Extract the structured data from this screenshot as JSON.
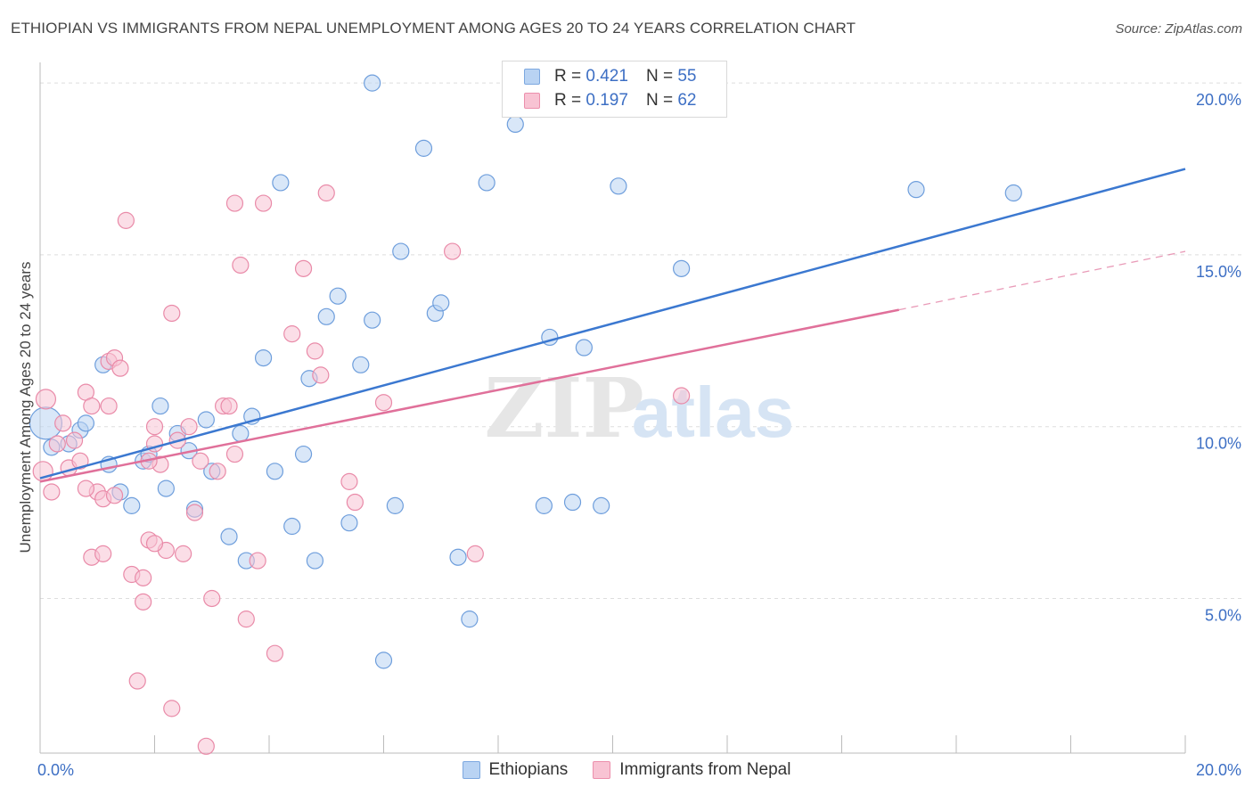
{
  "title": "ETHIOPIAN VS IMMIGRANTS FROM NEPAL UNEMPLOYMENT AMONG AGES 20 TO 24 YEARS CORRELATION CHART",
  "source": "Source: ZipAtlas.com",
  "watermark": {
    "zip": "ZIP",
    "atlas": "atlas"
  },
  "legend_top": [
    {
      "r_label": "R =",
      "r_value": "0.421",
      "n_label": "N =",
      "n_value": "55"
    },
    {
      "r_label": "R =",
      "r_value": "0.197",
      "n_label": "N =",
      "n_value": "62"
    }
  ],
  "colors": {
    "blue_fill": "#b9d3f3",
    "blue_stroke": "#6e9edc",
    "blue_line": "#3b78d0",
    "pink_fill": "#f8c3d3",
    "pink_stroke": "#e98aa8",
    "pink_line": "#e0709a",
    "tick_label": "#3d6fc4",
    "grid": "#dddddd"
  },
  "chart_data": {
    "type": "scatter",
    "title": "ETHIOPIAN VS IMMIGRANTS FROM NEPAL UNEMPLOYMENT AMONG AGES 20 TO 24 YEARS CORRELATION CHART",
    "xlabel": "",
    "ylabel": "Unemployment Among Ages 20 to 24 years",
    "xlim": [
      0,
      20
    ],
    "ylim": [
      0.5,
      20.6
    ],
    "x_tick_labels": [
      {
        "value": 0,
        "label": "0.0%"
      },
      {
        "value": 20,
        "label": "20.0%"
      }
    ],
    "y_ticks": [
      {
        "value": 5,
        "label": "5.0%"
      },
      {
        "value": 10,
        "label": "10.0%"
      },
      {
        "value": 15,
        "label": "15.0%"
      },
      {
        "value": 20,
        "label": "20.0%"
      }
    ],
    "x_minor_ticks": [
      2,
      4,
      6,
      8,
      10,
      12,
      14,
      16,
      18,
      20
    ],
    "grid": true,
    "legend": "bottom-center",
    "series": [
      {
        "name": "Ethiopians",
        "color": "blue",
        "trend": {
          "x0": 0,
          "y0": 8.5,
          "x1": 20,
          "y1": 17.5
        },
        "points": [
          [
            0.1,
            10.1,
            18
          ],
          [
            0.2,
            9.4,
            9
          ],
          [
            0.5,
            9.5,
            9
          ],
          [
            0.7,
            9.9,
            9
          ],
          [
            0.8,
            10.1,
            9
          ],
          [
            1.1,
            11.8,
            9
          ],
          [
            1.2,
            8.9,
            9
          ],
          [
            1.4,
            8.1,
            9
          ],
          [
            1.6,
            7.7,
            9
          ],
          [
            1.8,
            9.0,
            9
          ],
          [
            1.9,
            9.2,
            9
          ],
          [
            2.1,
            10.6,
            9
          ],
          [
            2.2,
            8.2,
            9
          ],
          [
            2.4,
            9.8,
            9
          ],
          [
            2.6,
            9.3,
            9
          ],
          [
            2.7,
            7.6,
            9
          ],
          [
            2.9,
            10.2,
            9
          ],
          [
            3.0,
            8.7,
            9
          ],
          [
            3.3,
            6.8,
            9
          ],
          [
            3.5,
            9.8,
            9
          ],
          [
            3.6,
            6.1,
            9
          ],
          [
            3.7,
            10.3,
            9
          ],
          [
            3.9,
            12.0,
            9
          ],
          [
            4.1,
            8.7,
            9
          ],
          [
            4.2,
            17.1,
            9
          ],
          [
            4.4,
            7.1,
            9
          ],
          [
            4.6,
            9.2,
            9
          ],
          [
            4.7,
            11.4,
            9
          ],
          [
            4.8,
            6.1,
            9
          ],
          [
            5.0,
            13.2,
            9
          ],
          [
            5.2,
            13.8,
            9
          ],
          [
            5.4,
            7.2,
            9
          ],
          [
            5.6,
            11.8,
            9
          ],
          [
            5.8,
            13.1,
            9
          ],
          [
            6.0,
            3.2,
            9
          ],
          [
            6.2,
            7.7,
            9
          ],
          [
            6.3,
            15.1,
            9
          ],
          [
            6.7,
            18.1,
            9
          ],
          [
            6.9,
            13.3,
            9
          ],
          [
            7.0,
            13.6,
            9
          ],
          [
            7.3,
            6.2,
            9
          ],
          [
            7.5,
            4.4,
            9
          ],
          [
            7.8,
            17.1,
            9
          ],
          [
            8.3,
            18.8,
            9
          ],
          [
            8.8,
            7.7,
            9
          ],
          [
            8.9,
            12.6,
            9
          ],
          [
            9.3,
            7.8,
            9
          ],
          [
            9.5,
            12.3,
            9
          ],
          [
            9.8,
            7.7,
            9
          ],
          [
            10.1,
            17.0,
            9
          ],
          [
            11.2,
            14.6,
            9
          ],
          [
            15.3,
            16.9,
            9
          ],
          [
            17.0,
            16.8,
            9
          ],
          [
            5.8,
            20.0,
            9
          ],
          [
            3.1,
            9.6,
            0
          ]
        ]
      },
      {
        "name": "Immigrants from Nepal",
        "color": "pink",
        "trend": {
          "x0": 0,
          "y0": 8.4,
          "x1": 15,
          "y1": 13.4
        },
        "trend_dashed": {
          "x0": 15,
          "y0": 13.4,
          "x1": 20,
          "y1": 15.1
        },
        "points": [
          [
            0.05,
            8.7,
            11
          ],
          [
            0.1,
            10.8,
            11
          ],
          [
            0.2,
            8.1,
            9
          ],
          [
            0.3,
            9.5,
            9
          ],
          [
            0.4,
            10.1,
            9
          ],
          [
            0.5,
            8.8,
            9
          ],
          [
            0.6,
            9.6,
            9
          ],
          [
            0.7,
            9.0,
            9
          ],
          [
            0.8,
            11.0,
            9
          ],
          [
            0.9,
            10.6,
            9
          ],
          [
            0.9,
            6.2,
            9
          ],
          [
            1.0,
            8.1,
            9
          ],
          [
            1.1,
            7.9,
            9
          ],
          [
            1.1,
            6.3,
            9
          ],
          [
            1.2,
            10.6,
            9
          ],
          [
            1.2,
            11.9,
            9
          ],
          [
            1.3,
            12.0,
            9
          ],
          [
            1.4,
            11.7,
            9
          ],
          [
            1.5,
            16.0,
            9
          ],
          [
            1.6,
            5.7,
            9
          ],
          [
            1.7,
            2.6,
            9
          ],
          [
            1.8,
            5.6,
            9
          ],
          [
            1.8,
            4.9,
            9
          ],
          [
            1.9,
            6.7,
            9
          ],
          [
            2.0,
            9.5,
            9
          ],
          [
            2.0,
            10.0,
            9
          ],
          [
            2.1,
            8.9,
            9
          ],
          [
            2.2,
            6.4,
            9
          ],
          [
            2.3,
            13.3,
            9
          ],
          [
            2.3,
            1.8,
            9
          ],
          [
            2.4,
            9.6,
            9
          ],
          [
            2.5,
            6.3,
            9
          ],
          [
            2.6,
            10.0,
            9
          ],
          [
            2.7,
            7.5,
            9
          ],
          [
            2.8,
            9.0,
            9
          ],
          [
            2.9,
            0.7,
            9
          ],
          [
            3.0,
            5.0,
            9
          ],
          [
            3.1,
            8.7,
            9
          ],
          [
            3.2,
            10.6,
            9
          ],
          [
            3.3,
            10.6,
            9
          ],
          [
            3.4,
            16.5,
            9
          ],
          [
            3.5,
            14.7,
            9
          ],
          [
            3.6,
            4.4,
            9
          ],
          [
            3.8,
            6.1,
            9
          ],
          [
            3.9,
            16.5,
            9
          ],
          [
            4.1,
            3.4,
            9
          ],
          [
            4.4,
            12.7,
            9
          ],
          [
            4.6,
            14.6,
            9
          ],
          [
            4.8,
            12.2,
            9
          ],
          [
            4.9,
            11.5,
            9
          ],
          [
            5.0,
            16.8,
            9
          ],
          [
            5.4,
            8.4,
            9
          ],
          [
            5.5,
            7.8,
            9
          ],
          [
            6.0,
            10.7,
            9
          ],
          [
            7.2,
            15.1,
            9
          ],
          [
            7.6,
            6.3,
            9
          ],
          [
            11.2,
            10.9,
            9
          ],
          [
            1.9,
            9.0,
            9
          ],
          [
            0.8,
            8.2,
            9
          ],
          [
            1.3,
            8.0,
            9
          ],
          [
            2.0,
            6.6,
            9
          ],
          [
            3.4,
            9.2,
            9
          ]
        ]
      }
    ]
  }
}
